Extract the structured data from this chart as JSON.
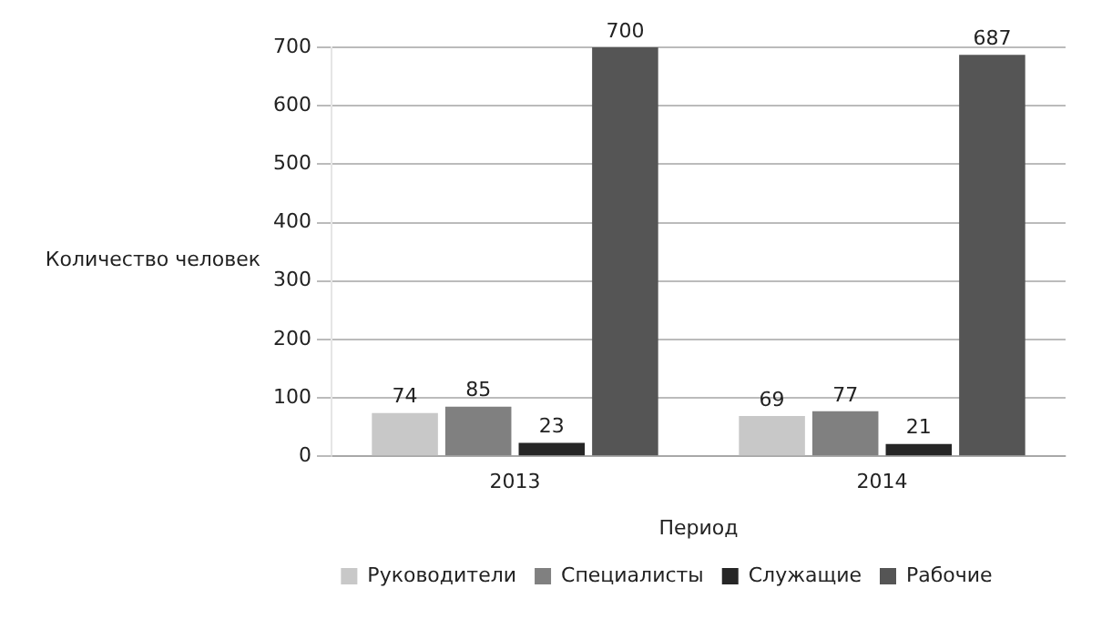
{
  "chart_data": {
    "type": "bar",
    "categories": [
      "2013",
      "2014"
    ],
    "xlabel": "Период",
    "ylabel": "Количество человек",
    "series": [
      {
        "name": "Руководители",
        "color": "#c8c8c8",
        "values": [
          74,
          69
        ]
      },
      {
        "name": "Специалисты",
        "color": "#808080",
        "values": [
          85,
          77
        ]
      },
      {
        "name": "Служащие",
        "color": "#262626",
        "values": [
          23,
          21
        ]
      },
      {
        "name": "Рабочие",
        "color": "#555555",
        "values": [
          700,
          687
        ]
      }
    ],
    "ylim": [
      0,
      700
    ],
    "yticks": [
      0,
      100,
      200,
      300,
      400,
      500,
      600,
      700
    ],
    "grid": "y",
    "legend": "bottom",
    "data_labels": true
  }
}
